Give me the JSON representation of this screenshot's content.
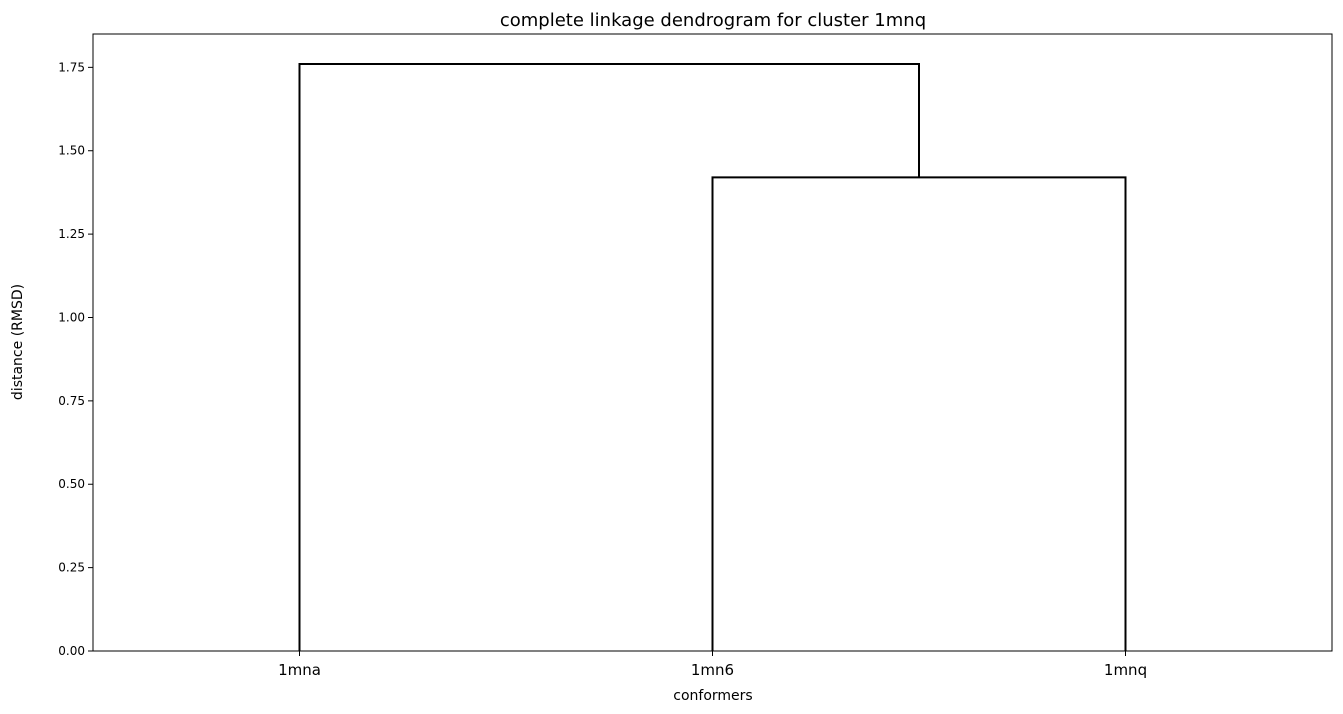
{
  "chart_data": {
    "type": "dendrogram",
    "title": "complete linkage dendrogram for cluster 1mnq",
    "xlabel": "conformers",
    "ylabel": "distance (RMSD)",
    "leaves": [
      "1mna",
      "1mn6",
      "1mnq"
    ],
    "merges": [
      {
        "children": [
          "1mn6",
          "1mnq"
        ],
        "distance": 1.42
      },
      {
        "children": [
          "1mna",
          "1mn6+1mnq"
        ],
        "distance": 1.76
      }
    ],
    "yticks": [
      "0.00",
      "0.25",
      "0.50",
      "0.75",
      "1.00",
      "1.25",
      "1.50",
      "1.75"
    ],
    "ylim": [
      0,
      1.85
    ],
    "grid": false,
    "line_color": "#000000"
  }
}
